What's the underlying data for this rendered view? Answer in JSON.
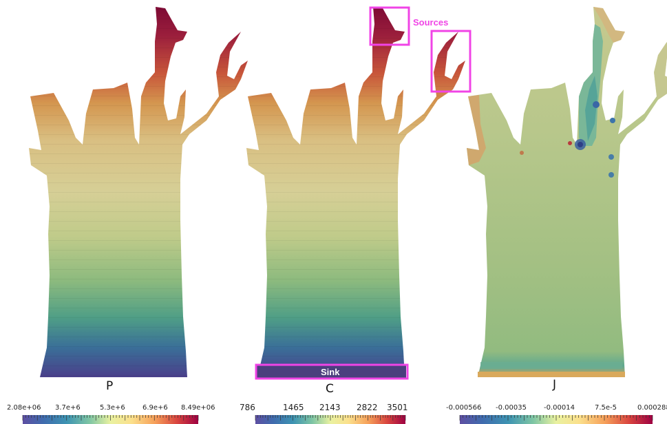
{
  "panels": [
    {
      "label": "P",
      "ticks": [
        "2.08e+06",
        "3.7e+6",
        "5.3e+6",
        "6.9e+6",
        "8.49e+06"
      ]
    },
    {
      "label": "C",
      "ticks": [
        "786",
        "1465",
        "2143",
        "2822",
        "3501"
      ]
    },
    {
      "label": "J",
      "ticks": [
        "-0.000566",
        "-0.00035",
        "-0.00014",
        "7.5e-5",
        "0.000288"
      ]
    }
  ],
  "annotations": {
    "sources": "Sources",
    "sink": "Sink"
  },
  "colors": {
    "annotation": "#f044e6",
    "colormap": [
      "#5e4fa2",
      "#3288bd",
      "#66c2a5",
      "#abdda4",
      "#e6f598",
      "#fee08b",
      "#fdae61",
      "#f46d43",
      "#d53e4f",
      "#9e0142"
    ]
  }
}
